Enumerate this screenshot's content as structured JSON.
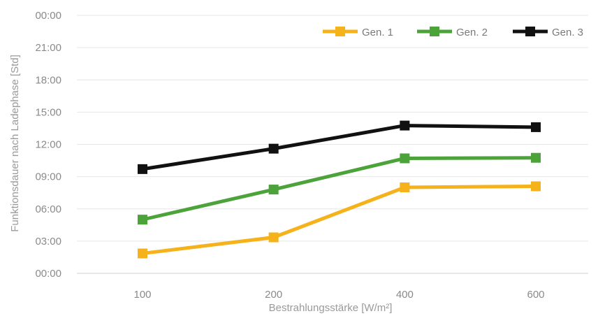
{
  "chart_data": {
    "type": "line",
    "categories": [
      "100",
      "200",
      "400",
      "600"
    ],
    "y_ticks": [
      "00:00",
      "03:00",
      "06:00",
      "09:00",
      "12:00",
      "15:00",
      "18:00",
      "21:00",
      "00:00"
    ],
    "ylim": [
      0,
      24
    ],
    "xlabel": "Bestrahlungsstärke [W/m²]",
    "ylabel": "Funktionsdauer nach Ladephase  [Std]",
    "grid": true,
    "legend_position": "top-right",
    "series": [
      {
        "name": "Gen. 1",
        "color": "#F5B21B",
        "values": [
          1.85,
          3.35,
          8.0,
          8.1
        ]
      },
      {
        "name": "Gen. 2",
        "color": "#4CA33A",
        "values": [
          5.0,
          7.8,
          10.7,
          10.75
        ]
      },
      {
        "name": "Gen. 3",
        "color": "#111111",
        "values": [
          9.7,
          11.6,
          13.75,
          13.6
        ]
      }
    ]
  }
}
